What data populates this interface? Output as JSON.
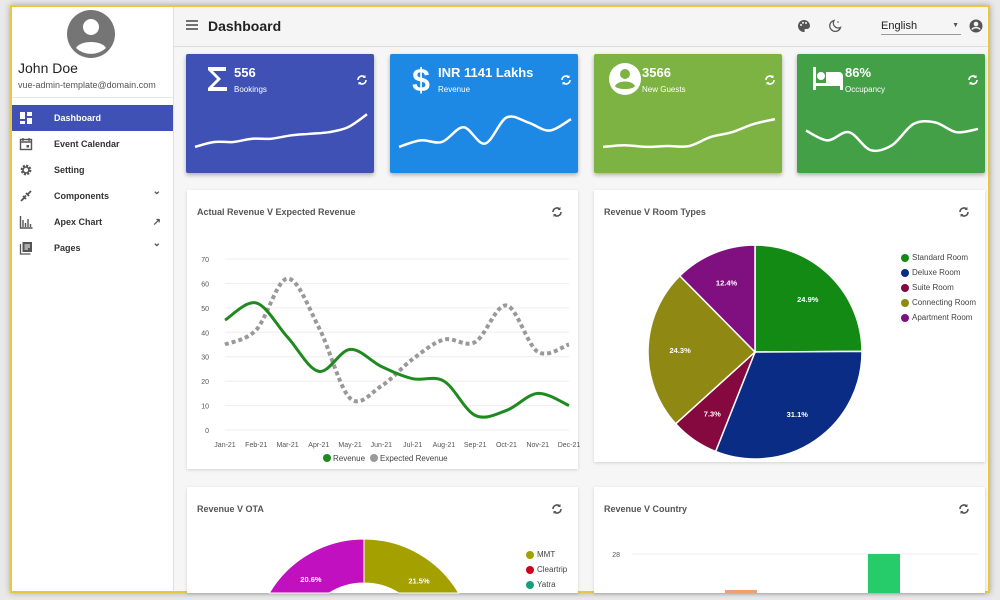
{
  "user": {
    "name": "John Doe",
    "email": "vue-admin-template@domain.com"
  },
  "sidebar": {
    "items": [
      {
        "label": "Dashboard",
        "icon": "dashboard-icon",
        "active": true,
        "trail": ""
      },
      {
        "label": "Event Calendar",
        "icon": "calendar-icon",
        "trail": ""
      },
      {
        "label": "Setting",
        "icon": "gear-icon",
        "trail": ""
      },
      {
        "label": "Components",
        "icon": "plug-icon",
        "trail": "chevron-down"
      },
      {
        "label": "Apex Chart",
        "icon": "bar-chart-icon",
        "trail": "external-arrow"
      },
      {
        "label": "Pages",
        "icon": "pages-icon",
        "trail": "chevron-down"
      }
    ]
  },
  "header": {
    "title": "Dashboard",
    "language": "English"
  },
  "stats": [
    {
      "value": "556",
      "label": "Bookings",
      "icon": "sigma-icon",
      "color": "#3f51b5",
      "spark": [
        10,
        13,
        13,
        15,
        15,
        17,
        18,
        19,
        22,
        30
      ]
    },
    {
      "value": "INR 1141 Lakhs",
      "label": "Revenue",
      "icon": "dollar-icon",
      "color": "#1e88e5",
      "spark": [
        10,
        14,
        13,
        22,
        12,
        28,
        25,
        20,
        27
      ]
    },
    {
      "value": "3566",
      "label": "New Guests",
      "icon": "account-circle-icon",
      "color": "#7cb342",
      "spark": [
        10,
        11,
        10,
        10.5,
        10.5,
        16,
        19,
        24,
        27
      ]
    },
    {
      "value": "86%",
      "label": "Occupancy",
      "icon": "bed-icon",
      "color": "#43a047",
      "spark": [
        20,
        14,
        19,
        8,
        11,
        24,
        25,
        19,
        21
      ]
    }
  ],
  "charts": {
    "line": {
      "title": "Actual Revenue V Expected Revenue"
    },
    "pie": {
      "title": "Revenue V Room Types"
    },
    "donut": {
      "title": "Revenue V OTA"
    },
    "bar": {
      "title": "Revenue V Country"
    }
  },
  "chart_data": [
    {
      "type": "line",
      "title": "Actual Revenue V Expected Revenue",
      "categories": [
        "Jan-21",
        "Feb-21",
        "Mar-21",
        "Apr-21",
        "May-21",
        "Jun-21",
        "Jul-21",
        "Aug-21",
        "Sep-21",
        "Oct-21",
        "Nov-21",
        "Dec-21"
      ],
      "ylim": [
        0,
        70
      ],
      "yticks": [
        0,
        10,
        20,
        30,
        40,
        50,
        60,
        70
      ],
      "grid": true,
      "legend": "bottom",
      "series": [
        {
          "name": "Revenue",
          "color": "#1f8a1f",
          "values": [
            45,
            52,
            38,
            24,
            33,
            26,
            21,
            20,
            6,
            8,
            15,
            10
          ]
        },
        {
          "name": "Expected Revenue",
          "color": "#999999",
          "dashed": true,
          "values": [
            35,
            41,
            62,
            42,
            13,
            18,
            29,
            37,
            36,
            51,
            32,
            35
          ]
        }
      ]
    },
    {
      "type": "pie",
      "title": "Revenue V Room Types",
      "legend": "right",
      "labels": [
        "Standard Room",
        "Deluxe Room",
        "Suite Room",
        "Connecting Room",
        "Apartment Room"
      ],
      "values": [
        24.9,
        31.1,
        7.3,
        24.3,
        12.4
      ],
      "value_labels": [
        "24.9%",
        "31.1%",
        "7.3%",
        "24.3%",
        "12.4%"
      ],
      "colors": [
        "#138a13",
        "#0b2c84",
        "#85083f",
        "#8f8914",
        "#801080"
      ]
    },
    {
      "type": "pie",
      "variant": "donut",
      "title": "Revenue V OTA",
      "legend": "right",
      "partially_visible": true,
      "labels": [
        "MMT",
        "Cleartrip",
        "Yatra"
      ],
      "colors": [
        "#a3a000",
        "#d0021b",
        "#13a07c"
      ],
      "visible_values": {
        "MMT": 21.5,
        "last": 20.6
      },
      "value_labels": [
        "21.5%",
        "20.6%"
      ],
      "last_color": "#c010c0"
    },
    {
      "type": "bar",
      "title": "Revenue V Country",
      "partially_visible": true,
      "yticks": [
        28
      ],
      "grid": true,
      "bars": [
        {
          "color": "#f0a070",
          "value": 0.3
        },
        {
          "color": "#26cc6a",
          "value": 28
        }
      ]
    }
  ]
}
